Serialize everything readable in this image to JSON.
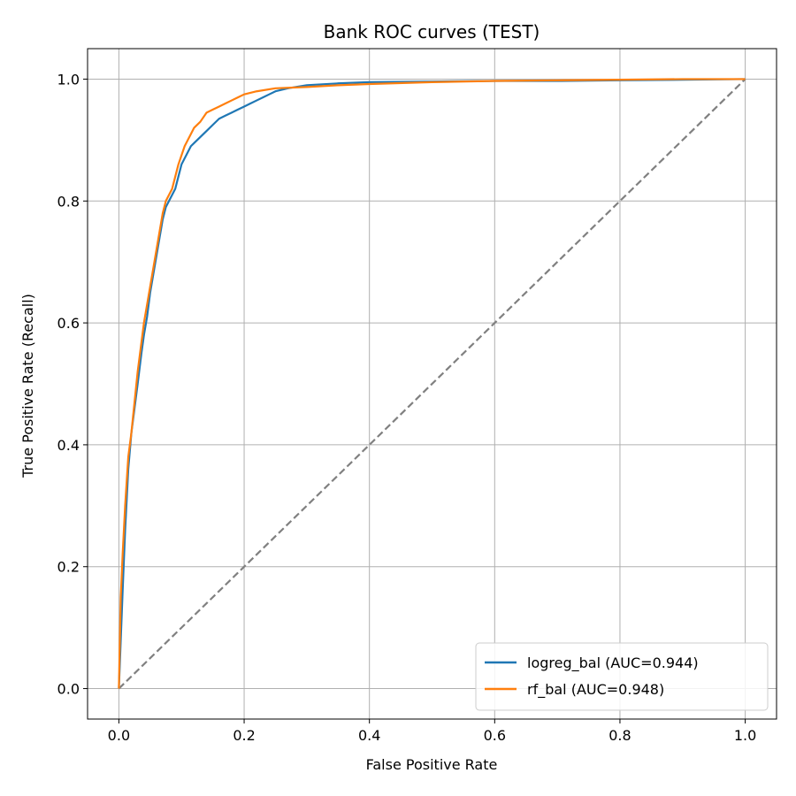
{
  "chart_data": {
    "type": "line",
    "title": "Bank ROC curves (TEST)",
    "xlabel": "False Positive Rate",
    "ylabel": "True Positive Rate (Recall)",
    "xlim": [
      -0.05,
      1.05
    ],
    "ylim": [
      -0.05,
      1.05
    ],
    "xticks": [
      "0.0",
      "0.2",
      "0.4",
      "0.6",
      "0.8",
      "1.0"
    ],
    "yticks": [
      "0.0",
      "0.2",
      "0.4",
      "0.6",
      "0.8",
      "1.0"
    ],
    "grid": true,
    "legend_position": "lower-right",
    "series": [
      {
        "name": "logreg_bal (AUC=0.944)",
        "color": "#1f77b4",
        "style": "solid",
        "x": [
          0.0,
          0.003,
          0.006,
          0.01,
          0.015,
          0.02,
          0.025,
          0.03,
          0.036,
          0.04,
          0.045,
          0.05,
          0.055,
          0.06,
          0.065,
          0.07,
          0.075,
          0.08,
          0.085,
          0.09,
          0.095,
          0.1,
          0.105,
          0.11,
          0.115,
          0.12,
          0.13,
          0.14,
          0.15,
          0.16,
          0.17,
          0.18,
          0.19,
          0.2,
          0.21,
          0.22,
          0.23,
          0.24,
          0.25,
          0.27,
          0.3,
          0.35,
          0.4,
          0.5,
          0.6,
          0.7,
          0.8,
          0.9,
          1.0
        ],
        "y": [
          0.0,
          0.08,
          0.16,
          0.26,
          0.36,
          0.42,
          0.46,
          0.5,
          0.55,
          0.58,
          0.61,
          0.65,
          0.68,
          0.71,
          0.74,
          0.77,
          0.79,
          0.8,
          0.81,
          0.82,
          0.84,
          0.86,
          0.87,
          0.88,
          0.89,
          0.895,
          0.905,
          0.915,
          0.925,
          0.935,
          0.94,
          0.945,
          0.95,
          0.955,
          0.96,
          0.965,
          0.97,
          0.975,
          0.98,
          0.985,
          0.99,
          0.993,
          0.995,
          0.996,
          0.997,
          0.997,
          0.998,
          0.999,
          1.0
        ]
      },
      {
        "name": "rf_bal (AUC=0.948)",
        "color": "#ff7f0e",
        "style": "solid",
        "x": [
          0.0,
          0.003,
          0.006,
          0.01,
          0.015,
          0.02,
          0.025,
          0.03,
          0.035,
          0.04,
          0.045,
          0.05,
          0.055,
          0.06,
          0.065,
          0.07,
          0.075,
          0.08,
          0.085,
          0.09,
          0.095,
          0.1,
          0.105,
          0.11,
          0.115,
          0.12,
          0.13,
          0.14,
          0.15,
          0.16,
          0.17,
          0.18,
          0.19,
          0.2,
          0.22,
          0.25,
          0.3,
          0.35,
          0.4,
          0.5,
          0.6,
          0.7,
          0.8,
          0.9,
          1.0
        ],
        "y": [
          0.0,
          0.15,
          0.22,
          0.3,
          0.38,
          0.42,
          0.47,
          0.52,
          0.56,
          0.6,
          0.63,
          0.66,
          0.69,
          0.72,
          0.75,
          0.78,
          0.8,
          0.81,
          0.82,
          0.84,
          0.86,
          0.875,
          0.89,
          0.9,
          0.91,
          0.92,
          0.93,
          0.945,
          0.95,
          0.955,
          0.96,
          0.965,
          0.97,
          0.975,
          0.98,
          0.985,
          0.987,
          0.99,
          0.992,
          0.995,
          0.997,
          0.998,
          0.999,
          1.0,
          1.0
        ]
      },
      {
        "name": "",
        "color": "#808080",
        "style": "dashed",
        "x": [
          0.0,
          1.0
        ],
        "y": [
          0.0,
          1.0
        ]
      }
    ]
  }
}
